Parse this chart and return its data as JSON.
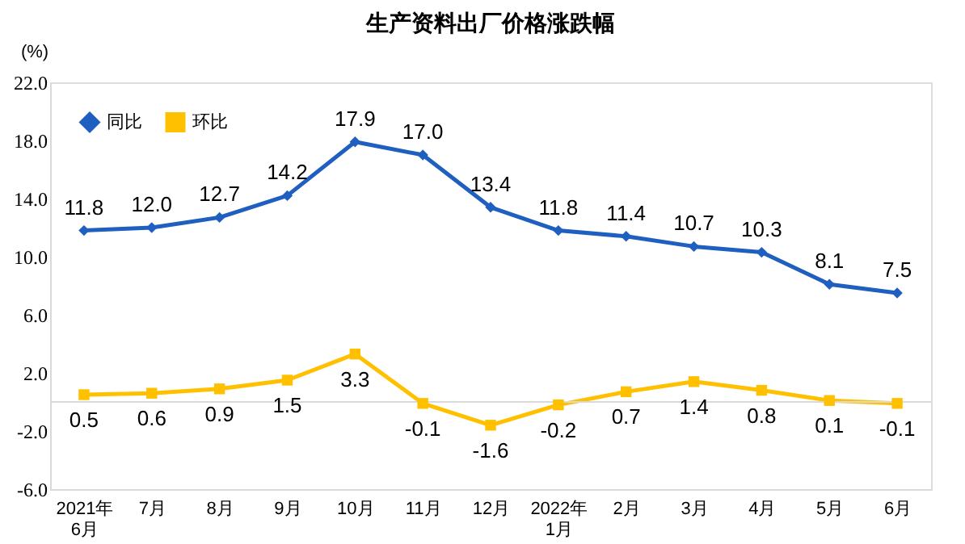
{
  "chart_data": {
    "type": "line",
    "title": "生产资料出厂价格涨跌幅",
    "ylabel": "(%)",
    "categories": [
      "2021年\n6月",
      "7月",
      "8月",
      "9月",
      "10月",
      "11月",
      "12月",
      "2022年\n1月",
      "2月",
      "3月",
      "4月",
      "5月",
      "6月"
    ],
    "series": [
      {
        "name": "同比",
        "color": "#1f5fbf",
        "marker": "diamond",
        "values": [
          11.8,
          12.0,
          12.7,
          14.2,
          17.9,
          17.0,
          13.4,
          11.8,
          11.4,
          10.7,
          10.3,
          8.1,
          7.5
        ],
        "value_labels": [
          "11.8",
          "12.0",
          "12.7",
          "14.2",
          "17.9",
          "17.0",
          "13.4",
          "11.8",
          "11.4",
          "10.7",
          "10.3",
          "8.1",
          "7.5"
        ]
      },
      {
        "name": "环比",
        "color": "#ffc000",
        "marker": "square",
        "values": [
          0.5,
          0.6,
          0.9,
          1.5,
          3.3,
          -0.1,
          -1.6,
          -0.2,
          0.7,
          1.4,
          0.8,
          0.1,
          -0.1
        ],
        "value_labels": [
          "0.5",
          "0.6",
          "0.9",
          "1.5",
          "3.3",
          "-0.1",
          "-1.6",
          "-0.2",
          "0.7",
          "1.4",
          "0.8",
          "0.1",
          "-0.1"
        ]
      }
    ],
    "ylim": [
      -6,
      22
    ],
    "yticks": [
      {
        "value": -6,
        "label": "-6.0"
      },
      {
        "value": -2,
        "label": "-2.0"
      },
      {
        "value": 2,
        "label": "2.0"
      },
      {
        "value": 6,
        "label": "6.0"
      },
      {
        "value": 10,
        "label": "10.0"
      },
      {
        "value": 14,
        "label": "14.0"
      },
      {
        "value": 18,
        "label": "18.0"
      },
      {
        "value": 22,
        "label": "22.0"
      }
    ],
    "ref_lines": [
      {
        "axis": "y",
        "value": 0,
        "label": null,
        "color": "#d9d9d9"
      }
    ],
    "legend": "top left",
    "grid": false,
    "line_style": "solid"
  }
}
